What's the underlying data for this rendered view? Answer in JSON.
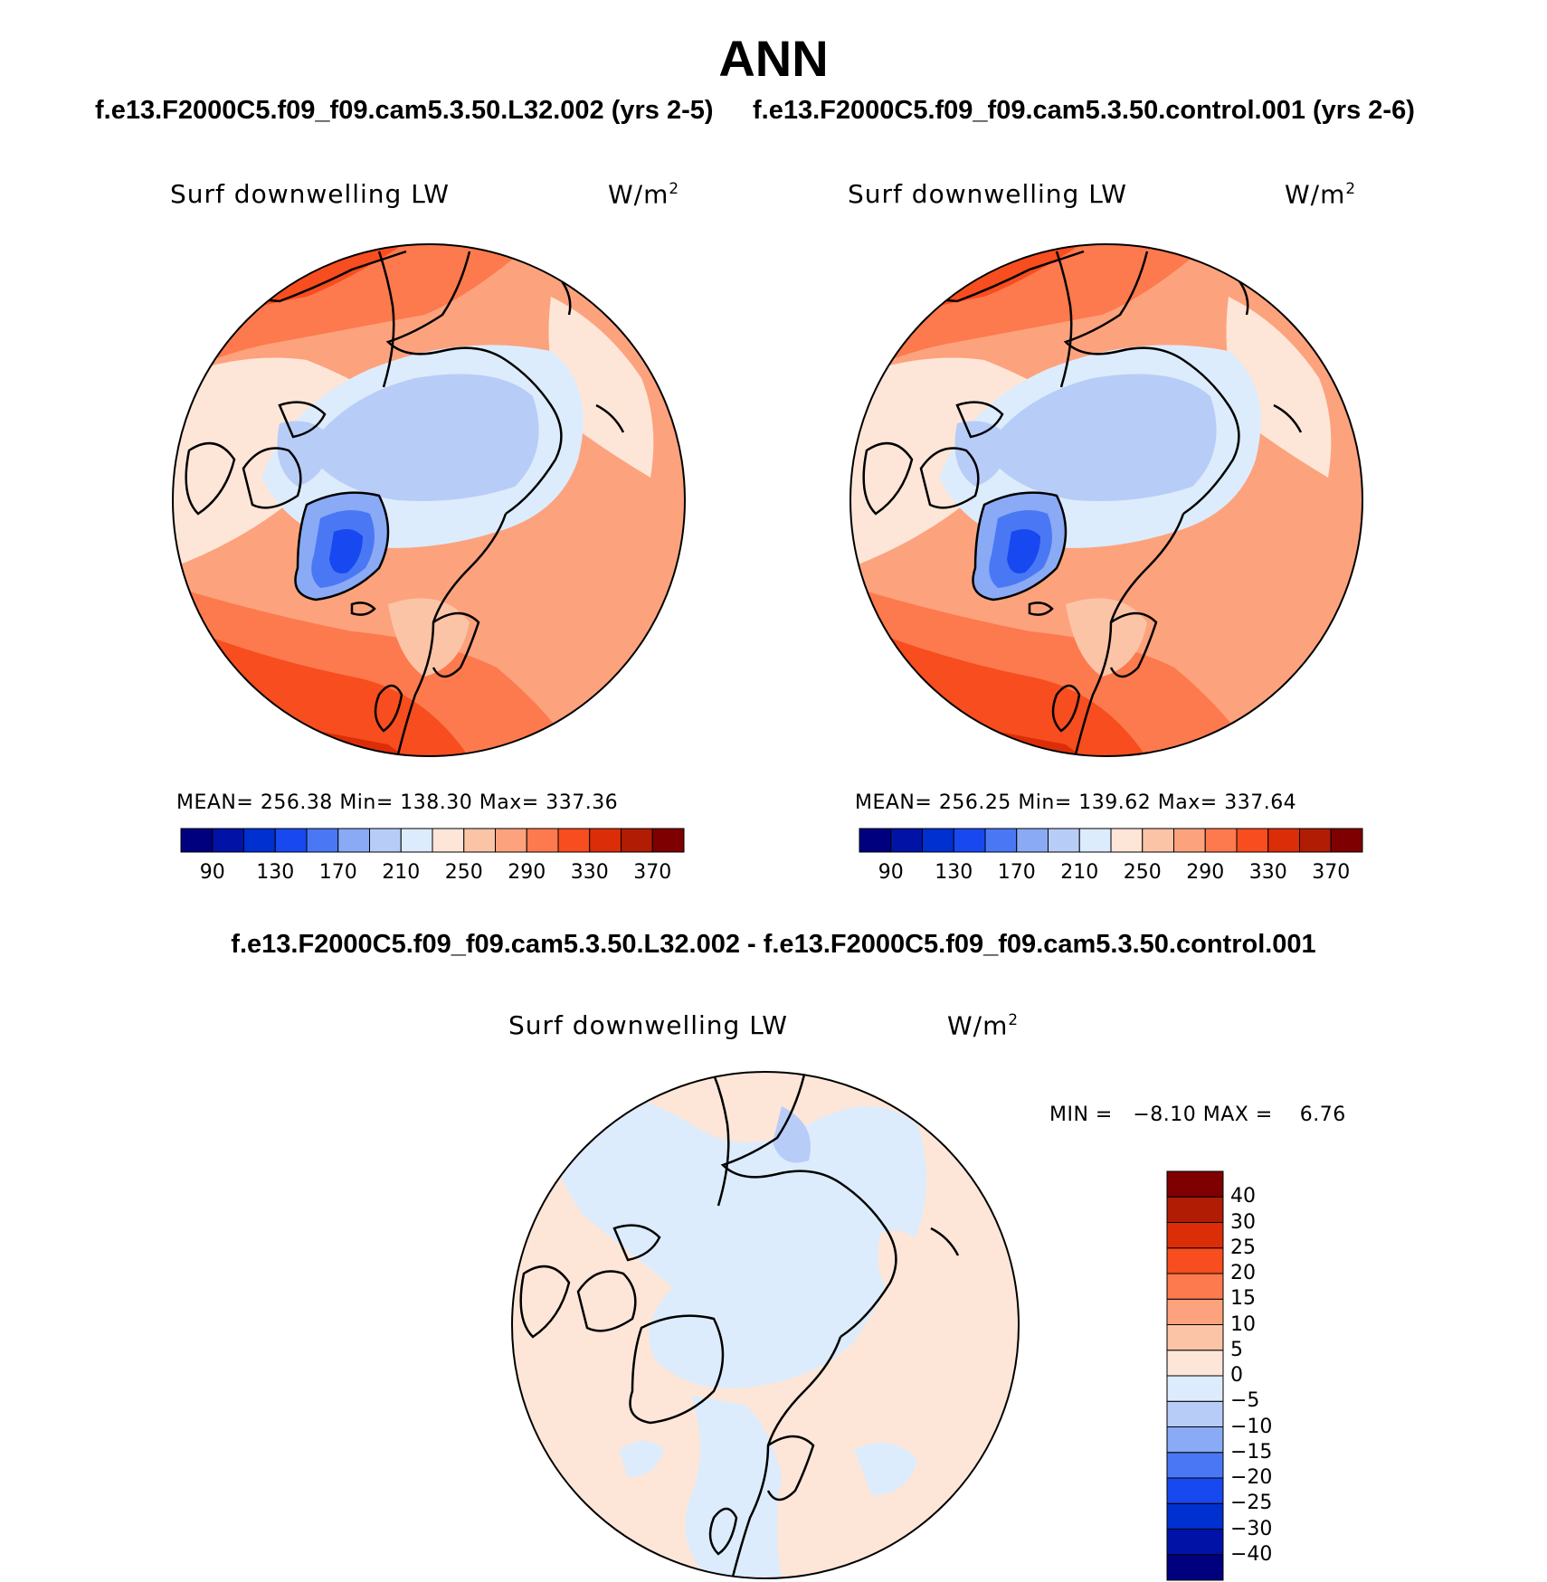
{
  "page": {
    "title": "ANN",
    "left_subtitle": "f.e13.F2000C5.f09_f09.cam5.3.50.L32.002 (yrs 2-5)",
    "right_subtitle": "f.e13.F2000C5.f09_f09.cam5.3.50.control.001 (yrs 2-6)",
    "diff_subtitle": "f.e13.F2000C5.f09_f09.cam5.3.50.L32.002 - f.e13.F2000C5.f09_f09.cam5.3.50.control.001"
  },
  "panels": {
    "left": {
      "variable": "Surf downwelling LW",
      "units": "W/m",
      "units_exp": "2",
      "mean_label": "MEAN=",
      "mean": "256.38",
      "min_label": "Min=",
      "min": "138.30",
      "max_label": "Max=",
      "max": "337.36"
    },
    "right": {
      "variable": "Surf downwelling LW",
      "units": "W/m",
      "units_exp": "2",
      "mean_label": "MEAN=",
      "mean": "256.25",
      "min_label": "Min=",
      "min": "139.62",
      "max_label": "Max=",
      "max": "337.64"
    },
    "diff": {
      "variable": "Surf downwelling LW",
      "units": "W/m",
      "units_exp": "2",
      "minmax_text": "MIN =   −8.10 MAX =    6.76"
    }
  },
  "colorbar_abs": {
    "colors": [
      "#00007f",
      "#0013a6",
      "#0030d0",
      "#1848f0",
      "#4a78f5",
      "#8aaaf5",
      "#b8ccf8",
      "#dcecfc",
      "#fde6d8",
      "#fcc4a6",
      "#fca27d",
      "#fc7a4d",
      "#f74d1f",
      "#db2e08",
      "#b01c04",
      "#7f0000"
    ],
    "tick_labels": [
      "90",
      "130",
      "170",
      "210",
      "250",
      "290",
      "330",
      "370"
    ]
  },
  "colorbar_diff": {
    "colors": [
      "#00007f",
      "#0013a6",
      "#0030d0",
      "#1848f0",
      "#4a78f5",
      "#8aaaf5",
      "#b8ccf8",
      "#dcecfc",
      "#fde6d8",
      "#fcc4a6",
      "#fca27d",
      "#fc7a4d",
      "#f74d1f",
      "#db2e08",
      "#b01c04",
      "#7f0000"
    ],
    "tick_labels": [
      "−40",
      "−30",
      "−25",
      "−20",
      "−15",
      "−10",
      "−5",
      "0",
      "5",
      "10",
      "15",
      "20",
      "25",
      "30",
      "40"
    ]
  },
  "map_colors": {
    "outline": "#000000",
    "ocean_north": "#fc7a4d",
    "atlantic": "#f74d1f",
    "atlantic_far": "#db2e08",
    "mid_lat": "#fca27d",
    "land_warm": "#fcc4a6",
    "land_cool": "#fde6d8",
    "arctic_outer": "#dcecfc",
    "arctic_inner": "#b8ccf8",
    "greenland_1": "#8aaaf5",
    "greenland_2": "#4a78f5",
    "greenland_3": "#1848f0",
    "diff_positive": "#fde6d8",
    "diff_negative": "#dcecfc",
    "diff_neg_strong": "#b8ccf8"
  }
}
